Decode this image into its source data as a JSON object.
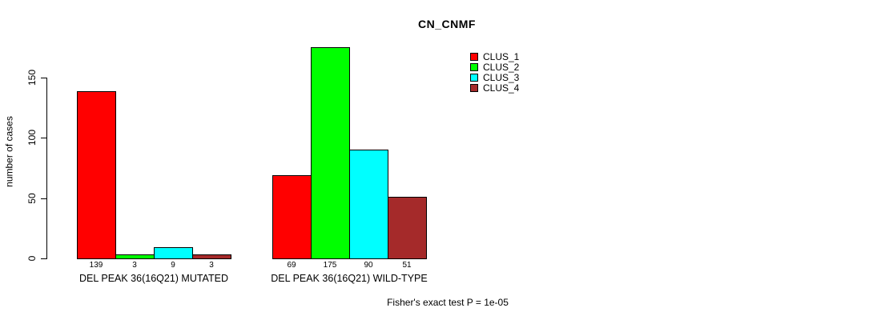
{
  "chart_data": {
    "type": "bar",
    "title": "CN_CNMF",
    "ylabel": "number of cases",
    "annotation": "Fisher's exact test P = 1e-05",
    "categories": [
      "DEL PEAK 36(16Q21) MUTATED",
      "DEL PEAK 36(16Q21) WILD-TYPE"
    ],
    "series": [
      {
        "name": "CLUS_1",
        "color": "#ff0000",
        "values": [
          139,
          69
        ]
      },
      {
        "name": "CLUS_2",
        "color": "#00ff00",
        "values": [
          3,
          175
        ]
      },
      {
        "name": "CLUS_3",
        "color": "#00ffff",
        "values": [
          9,
          90
        ]
      },
      {
        "name": "CLUS_4",
        "color": "#a52a2a",
        "values": [
          3,
          51
        ]
      }
    ],
    "yticks": [
      0,
      50,
      100,
      150
    ],
    "ylim": [
      0,
      175
    ],
    "grid": false,
    "legend_position": "top-right",
    "bar_value_labels": true
  }
}
